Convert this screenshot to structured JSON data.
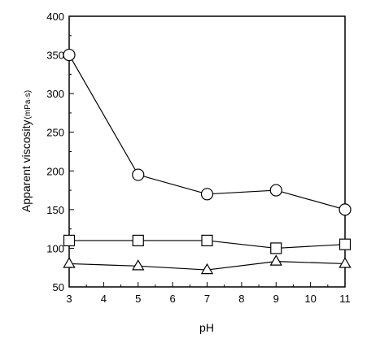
{
  "chart_data": {
    "type": "line",
    "title": "",
    "xlabel": "pH",
    "ylabel": "Apparent viscosity",
    "ylabel_unit": "(mPa·s)",
    "xlim": [
      3,
      11
    ],
    "ylim": [
      50,
      400
    ],
    "x_ticks": [
      3,
      4,
      5,
      6,
      7,
      8,
      9,
      10,
      11
    ],
    "y_ticks": [
      50,
      100,
      150,
      200,
      250,
      300,
      350,
      400
    ],
    "grid": false,
    "legend": "none",
    "x": [
      3,
      5,
      7,
      9,
      11
    ],
    "series": [
      {
        "marker": "circle",
        "values": [
          350,
          195,
          170,
          175,
          150
        ]
      },
      {
        "marker": "square",
        "values": [
          110,
          110,
          110,
          100,
          105
        ]
      },
      {
        "marker": "triangle",
        "values": [
          80,
          77,
          72,
          83,
          80
        ]
      }
    ],
    "colors": {
      "line": "#000000",
      "marker_fill": "#ffffff"
    }
  }
}
